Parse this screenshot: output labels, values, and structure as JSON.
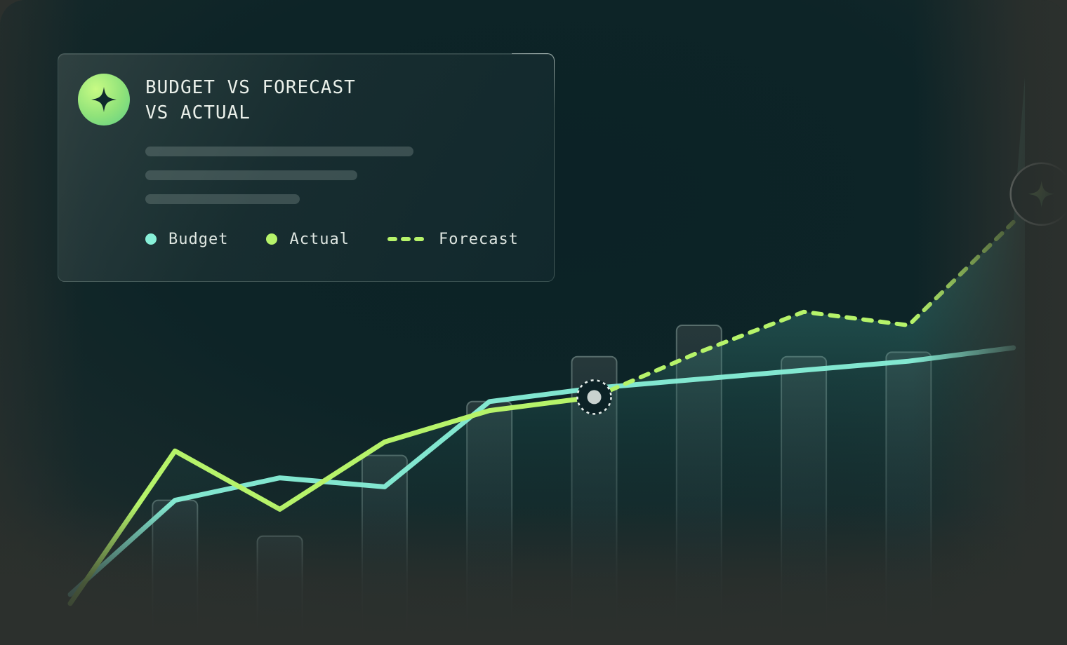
{
  "card": {
    "title": "BUDGET VS FORECAST\nVS ACTUAL",
    "badge_icon": "sparkle-icon"
  },
  "legend": [
    {
      "label": "Budget",
      "color": "#88f0d8",
      "style": "dot"
    },
    {
      "label": "Actual",
      "color": "#b6f36a",
      "style": "dot"
    },
    {
      "label": "Forecast",
      "color": "#b6f36a",
      "style": "dashed"
    }
  ],
  "chart_data": {
    "type": "line",
    "title": "BUDGET VS FORECAST\nVS ACTUAL",
    "xlabel": "",
    "ylabel": "",
    "grid": false,
    "legend_position": "top-left",
    "x": [
      0,
      1,
      2,
      3,
      4,
      5,
      6,
      7,
      8
    ],
    "ylim": [
      0,
      100
    ],
    "bars": {
      "x": [
        1,
        2,
        3,
        4,
        5,
        6,
        7,
        8
      ],
      "values": [
        26,
        18,
        36,
        48,
        58,
        65,
        58,
        59
      ]
    },
    "series": [
      {
        "name": "Budget",
        "color": "#88f0d8",
        "x": [
          0,
          1,
          2,
          3,
          4,
          5,
          6,
          7,
          8,
          9
        ],
        "values": [
          5,
          26,
          31,
          29,
          48,
          51,
          53,
          55,
          57,
          60
        ]
      },
      {
        "name": "Actual",
        "color": "#b6f36a",
        "x": [
          0,
          1,
          2,
          3,
          4,
          5
        ],
        "values": [
          3,
          37,
          24,
          39,
          46,
          49
        ]
      },
      {
        "name": "Forecast",
        "color": "#b6f36a",
        "dashed": true,
        "x": [
          5,
          6,
          7,
          8,
          9
        ],
        "values": [
          49,
          59,
          68,
          65,
          88
        ]
      }
    ],
    "highlight_point": {
      "x": 5,
      "y": 49
    },
    "end_marker_icon": "sparkle-icon"
  }
}
